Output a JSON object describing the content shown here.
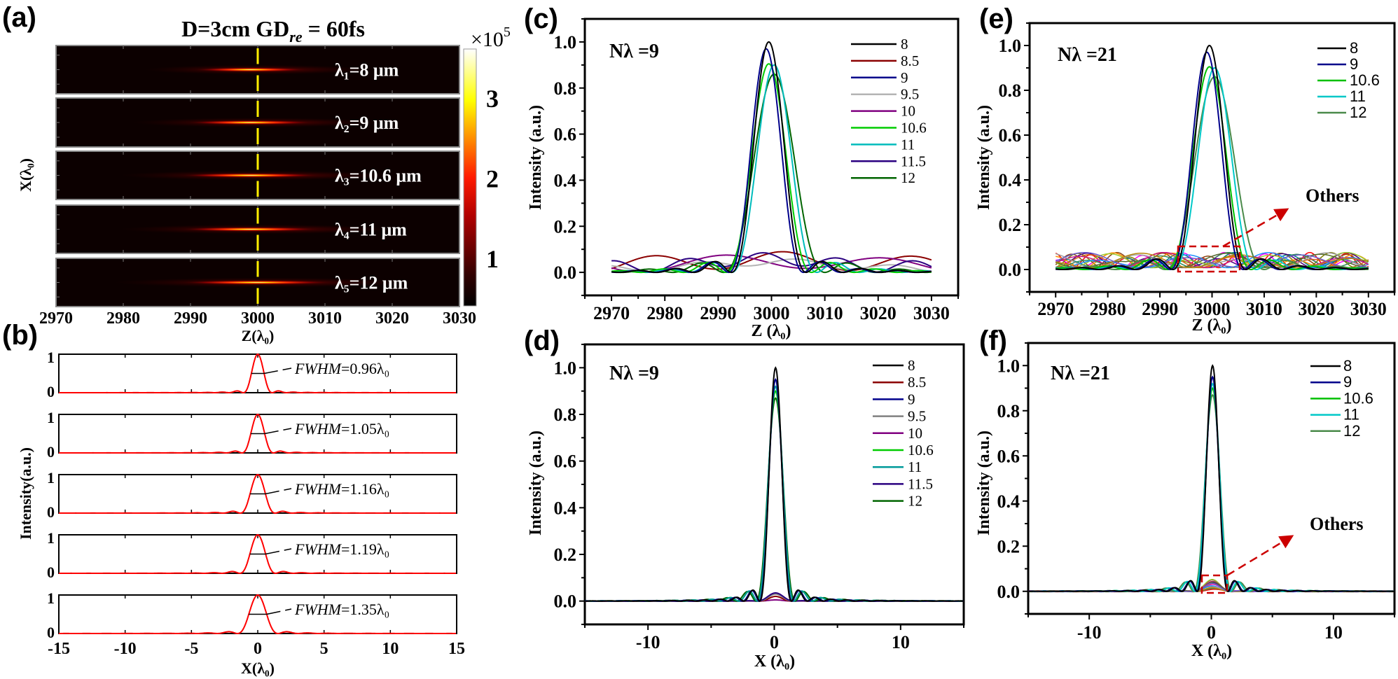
{
  "panel_labels": {
    "a": "(a)",
    "b": "(b)",
    "c": "(c)",
    "d": "(d)",
    "e": "(e)",
    "f": "(f)"
  },
  "chart_data": [
    {
      "id": "a",
      "type": "heatmap",
      "title_prefix": "D=3cm  GD",
      "title_sub": "re",
      "title_suffix": " = 60fs",
      "xlabel": "Z(λ₀)",
      "ylabel": "X(λ₀)",
      "xlim": [
        2970,
        3030
      ],
      "xticks": [
        "2970",
        "2980",
        "2990",
        "3000",
        "3010",
        "3020",
        "3030"
      ],
      "marker_z": 3000,
      "marker_color": "#ffee00",
      "strips": [
        {
          "label": "λ₁=8 μm",
          "focus_z": 3000,
          "length": 9
        },
        {
          "label": "λ₂=9 μm",
          "focus_z": 3000,
          "length": 10
        },
        {
          "label": "λ₃=10.6 μm",
          "focus_z": 3000,
          "length": 11
        },
        {
          "label": "λ₄=11 μm",
          "focus_z": 3000,
          "length": 11
        },
        {
          "label": "λ₅=12 μm",
          "focus_z": 3001,
          "length": 12
        }
      ],
      "colorbar": {
        "multiplier": "×10",
        "exponent": "5",
        "ticks": [
          "1",
          "2",
          "3"
        ],
        "tick_values": [
          1,
          2,
          3
        ],
        "range": [
          0.4,
          3.6
        ]
      }
    },
    {
      "id": "b",
      "type": "line",
      "xlabel": "X(λ₀)",
      "ylabel": "Intensity(a.u.)",
      "xlim": [
        -15,
        15
      ],
      "xticks": [
        "-15",
        "-10",
        "-5",
        "0",
        "5",
        "10",
        "15"
      ],
      "xtick_values": [
        -15,
        -10,
        -5,
        0,
        5,
        10,
        15
      ],
      "yticks": [
        "0",
        "1"
      ],
      "color": "#ff0000",
      "subplots": [
        {
          "fwhm": 0.96,
          "label_name": "FWHM",
          "label_value": "=0.96λ₀"
        },
        {
          "fwhm": 1.05,
          "label_name": "FWHM",
          "label_value": "=1.05λ₀"
        },
        {
          "fwhm": 1.16,
          "label_name": "FWHM",
          "label_value": "=1.16λ₀"
        },
        {
          "fwhm": 1.19,
          "label_name": "FWHM",
          "label_value": "=1.19λ₀"
        },
        {
          "fwhm": 1.35,
          "label_name": "FWHM",
          "label_value": "=1.35λ₀"
        }
      ]
    },
    {
      "id": "c",
      "type": "line",
      "annotation": "Nλ =9",
      "xlabel": "Z (λ₀)",
      "ylabel": "Intensity (a.u.)",
      "xlim": [
        2965,
        3035
      ],
      "ylim": [
        -0.1,
        1.1
      ],
      "data_range": [
        2970,
        3030
      ],
      "xticks": [
        "2970",
        "2980",
        "2990",
        "3000",
        "3010",
        "3020",
        "3030"
      ],
      "xtick_values": [
        2970,
        2980,
        2990,
        3000,
        3010,
        3020,
        3030
      ],
      "yticks": [
        "0.0",
        "0.2",
        "0.4",
        "0.6",
        "0.8",
        "1.0"
      ],
      "ytick_values": [
        0,
        0.2,
        0.4,
        0.6,
        0.8,
        1.0
      ],
      "series": [
        {
          "name": "8",
          "color": "#000000",
          "peak": 1.0,
          "center": 2999.5,
          "width": 7
        },
        {
          "name": "8.5",
          "color": "#8b0000",
          "peak": 0.02,
          "center": 3000,
          "width": 30,
          "ripple": [
            0.07,
            24,
            1.0
          ]
        },
        {
          "name": "9",
          "color": "#00008b",
          "peak": 0.97,
          "center": 2999,
          "width": 7
        },
        {
          "name": "9.5",
          "color": "#b4b4b4",
          "peak": 0.03,
          "center": 3000,
          "width": 30,
          "ripple": [
            0.03,
            18,
            2.0
          ]
        },
        {
          "name": "10",
          "color": "#800080",
          "peak": 0.02,
          "center": 3000,
          "width": 30,
          "ripple": [
            0.06,
            30,
            3.5
          ]
        },
        {
          "name": "10.6",
          "color": "#00cc00",
          "peak": 0.905,
          "center": 2999.5,
          "width": 8
        },
        {
          "name": "11",
          "color": "#00bcbc",
          "peak": 0.9,
          "center": 3000.5,
          "width": 8
        },
        {
          "name": "11.5",
          "color": "#2a0080",
          "peak": 0.035,
          "center": 2999,
          "width": 25,
          "ripple": [
            0.05,
            14,
            0.5
          ]
        },
        {
          "name": "12",
          "color": "#006400",
          "peak": 0.86,
          "center": 3000.5,
          "width": 9.5
        }
      ]
    },
    {
      "id": "d",
      "type": "line",
      "annotation": "Nλ =9",
      "xlabel": "X (λ₀)",
      "ylabel": "Intensity (a.u.)",
      "xlim": [
        -15,
        15
      ],
      "ylim": [
        -0.1,
        1.1
      ],
      "data_range": [
        -15,
        15
      ],
      "xticks": [
        "-10",
        "0",
        "10"
      ],
      "xtick_values": [
        -10,
        0,
        10
      ],
      "yticks": [
        "0.0",
        "0.2",
        "0.4",
        "0.6",
        "0.8",
        "1.0"
      ],
      "ytick_values": [
        0,
        0.2,
        0.4,
        0.6,
        0.8,
        1.0
      ],
      "series": [
        {
          "name": "8",
          "color": "#000000",
          "peak": 1.0,
          "center": 0.1,
          "width": 1.25
        },
        {
          "name": "8.5",
          "color": "#8b0000",
          "peak": 0.02,
          "center": 0.1,
          "width": 1.3
        },
        {
          "name": "9",
          "color": "#00008b",
          "peak": 0.95,
          "center": 0.1,
          "width": 1.3
        },
        {
          "name": "9.5",
          "color": "#808080",
          "peak": 0.03,
          "center": 0.1,
          "width": 1.4
        },
        {
          "name": "10",
          "color": "#800080",
          "peak": 0.005,
          "center": 0.1,
          "width": 1.4
        },
        {
          "name": "10.6",
          "color": "#00cc00",
          "peak": 0.9,
          "center": 0.1,
          "width": 1.45
        },
        {
          "name": "11",
          "color": "#009a9a",
          "peak": 0.92,
          "center": 0.1,
          "width": 1.45
        },
        {
          "name": "11.5",
          "color": "#2a0080",
          "peak": 0.035,
          "center": 0.1,
          "width": 1.5
        },
        {
          "name": "12",
          "color": "#006400",
          "peak": 0.87,
          "center": 0.1,
          "width": 1.55
        }
      ]
    },
    {
      "id": "e",
      "type": "line",
      "annotation": "Nλ =21",
      "others_label": "Others",
      "xlabel": "Z (λ₀)",
      "ylabel": "Intensity (a.u.)",
      "xlim": [
        2965,
        3035
      ],
      "ylim": [
        -0.1,
        1.1
      ],
      "data_range": [
        2970,
        3030
      ],
      "xticks": [
        "2970",
        "2980",
        "2990",
        "3000",
        "3010",
        "3020",
        "3030"
      ],
      "xtick_values": [
        2970,
        2980,
        2990,
        3000,
        3010,
        3020,
        3030
      ],
      "yticks": [
        "0.0",
        "0.2",
        "0.4",
        "0.6",
        "0.8",
        "1.0"
      ],
      "ytick_values": [
        0,
        0.2,
        0.4,
        0.6,
        0.8,
        1.0
      ],
      "series": [
        {
          "name": "8",
          "color": "#000000",
          "peak": 1.0,
          "center": 2999.5,
          "width": 7
        },
        {
          "name": "9",
          "color": "#00008b",
          "peak": 0.97,
          "center": 2999,
          "width": 7
        },
        {
          "name": "10.6",
          "color": "#00c000",
          "peak": 0.905,
          "center": 2999.5,
          "width": 8
        },
        {
          "name": "11",
          "color": "#00c8c8",
          "peak": 0.9,
          "center": 3000.5,
          "width": 8
        },
        {
          "name": "12",
          "color": "#4a8a4a",
          "peak": 0.86,
          "center": 3000.5,
          "width": 9.5
        }
      ],
      "others_max": 0.085,
      "others_colors": [
        "#ff0000",
        "#ff00ff",
        "#8b4513",
        "#808000",
        "#008080",
        "#ff8c00",
        "#4b0082",
        "#2e8b57",
        "#d2691e",
        "#9acd32",
        "#1e90ff",
        "#c71585",
        "#a0a0a0",
        "#556b2f",
        "#b8860b",
        "#6a5acd"
      ],
      "highlight_color": "#cc0000"
    },
    {
      "id": "f",
      "type": "line",
      "annotation": "Nλ =21",
      "others_label": "Others",
      "xlabel": "X (λ₀)",
      "ylabel": "Intensity (a.u.)",
      "xlim": [
        -15,
        15
      ],
      "ylim": [
        -0.1,
        1.1
      ],
      "data_range": [
        -15,
        15
      ],
      "xticks": [
        "-10",
        "0",
        "10"
      ],
      "xtick_values": [
        -10,
        0,
        10
      ],
      "yticks": [
        "0.0",
        "0.2",
        "0.4",
        "0.6",
        "0.8",
        "1.0"
      ],
      "ytick_values": [
        0,
        0.2,
        0.4,
        0.6,
        0.8,
        1.0
      ],
      "series": [
        {
          "name": "8",
          "color": "#000000",
          "peak": 1.0,
          "center": 0.1,
          "width": 1.25
        },
        {
          "name": "9",
          "color": "#00008b",
          "peak": 0.95,
          "center": 0.1,
          "width": 1.3
        },
        {
          "name": "10.6",
          "color": "#00c000",
          "peak": 0.9,
          "center": 0.1,
          "width": 1.45
        },
        {
          "name": "11",
          "color": "#00c8c8",
          "peak": 0.92,
          "center": 0.1,
          "width": 1.45
        },
        {
          "name": "12",
          "color": "#4a8a4a",
          "peak": 0.87,
          "center": 0.1,
          "width": 1.55
        }
      ],
      "others_max": 0.055,
      "others_colors": [
        "#ff0000",
        "#ff00ff",
        "#8b4513",
        "#808000",
        "#008080",
        "#ff8c00",
        "#4b0082",
        "#2e8b57",
        "#d2691e",
        "#9acd32",
        "#1e90ff",
        "#c71585",
        "#a0a0a0",
        "#556b2f",
        "#b8860b",
        "#6a5acd"
      ],
      "highlight_color": "#cc0000"
    }
  ]
}
